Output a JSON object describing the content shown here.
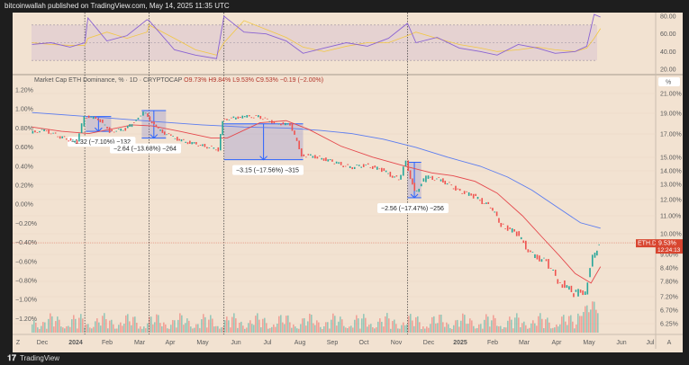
{
  "header": {
    "published": "bitcoinwallah published on TradingView.com, May 14, 2025 11:35 UTC"
  },
  "legend": {
    "symbol": "Market Cap ETH Dominance, % · 1D · CRYPTOCAP",
    "o": "O9.73%",
    "h": "H9.84%",
    "l": "L9.53%",
    "c": "C9.53%",
    "chg": "−0.19 (−2.00%)"
  },
  "footer": {
    "brand": "TradingView"
  },
  "colors": {
    "up": "#26a69a",
    "down": "#ef5350",
    "ma_fast": "#e5484d",
    "ma_slow": "#5b7cf0",
    "rsi": "#8a63d2",
    "rsi_ma": "#f2c744",
    "measure": "#2962ff",
    "price_tag": "#d8452f"
  },
  "price_tag": {
    "symbol": "ETH.D",
    "value": "9.53%",
    "countdown": "12:24:13"
  },
  "axis_buttons": {
    "left": "Z",
    "right": "A",
    "unit": "%"
  },
  "chart_data": [
    {
      "type": "line",
      "panel": "rsi",
      "yticks": [
        "80.00",
        "60.00",
        "40.00",
        "20.00"
      ],
      "ylim": [
        20,
        80
      ],
      "band": [
        30,
        70
      ],
      "x": [
        "2023-11-22",
        "2023-12-10",
        "2023-12-28",
        "2024-01-11",
        "2024-01-14",
        "2024-02-01",
        "2024-02-20",
        "2024-03-10",
        "2024-03-12",
        "2024-04-05",
        "2024-04-25",
        "2024-05-15",
        "2024-05-22",
        "2024-06-10",
        "2024-07-01",
        "2024-07-20",
        "2024-08-05",
        "2024-08-25",
        "2024-09-15",
        "2024-10-05",
        "2024-10-25",
        "2024-11-12",
        "2024-11-20",
        "2024-12-10",
        "2024-12-31",
        "2025-01-20",
        "2025-02-05",
        "2025-02-25",
        "2025-03-15",
        "2025-04-01",
        "2025-04-20",
        "2025-05-01",
        "2025-05-08",
        "2025-05-14"
      ],
      "rsi": [
        48,
        50,
        45,
        50,
        78,
        52,
        58,
        76,
        75,
        42,
        36,
        32,
        80,
        62,
        60,
        52,
        38,
        44,
        50,
        46,
        55,
        72,
        50,
        56,
        44,
        40,
        36,
        48,
        44,
        38,
        40,
        46,
        82,
        79
      ],
      "rsi_ma": [
        50,
        48,
        47,
        47,
        55,
        62,
        55,
        62,
        70,
        55,
        42,
        36,
        50,
        75,
        65,
        56,
        45,
        40,
        46,
        50,
        50,
        58,
        62,
        55,
        48,
        44,
        40,
        42,
        45,
        42,
        40,
        44,
        55,
        66
      ]
    },
    {
      "type": "candlestick",
      "panel": "main",
      "title": "Market Cap ETH Dominance, % · 1D · CRYPTOCAP",
      "right_yticks": [
        "21.00%",
        "19.00%",
        "17.00%",
        "15.00%",
        "14.00%",
        "13.00%",
        "12.00%",
        "11.00%",
        "10.00%",
        "9.00%",
        "8.40%",
        "7.80%",
        "7.20%",
        "6.70%",
        "6.25%"
      ],
      "left_yticks": [
        "1.20%",
        "1.00%",
        "0.80%",
        "0.60%",
        "0.40%",
        "0.20%",
        "0.00%",
        "−0.20%",
        "−0.40%",
        "−0.60%",
        "−0.80%",
        "−1.00%",
        "−1.20%"
      ],
      "xticks": [
        "Dec",
        "2024",
        "Feb",
        "Mar",
        "Apr",
        "May",
        "Jun",
        "Jul",
        "Aug",
        "Sep",
        "Oct",
        "Nov",
        "Dec",
        "2025",
        "Feb",
        "Mar",
        "Apr",
        "May",
        "Jun",
        "Jul"
      ],
      "x": [
        "2023-11-22",
        "2023-12-05",
        "2023-12-20",
        "2024-01-05",
        "2024-01-12",
        "2024-01-25",
        "2024-02-05",
        "2024-02-20",
        "2024-03-01",
        "2024-03-08",
        "2024-03-20",
        "2024-04-01",
        "2024-04-15",
        "2024-05-01",
        "2024-05-18",
        "2024-05-22",
        "2024-06-10",
        "2024-06-25",
        "2024-07-10",
        "2024-07-25",
        "2024-08-05",
        "2024-08-20",
        "2024-09-05",
        "2024-09-20",
        "2024-10-05",
        "2024-10-20",
        "2024-11-05",
        "2024-11-12",
        "2024-11-20",
        "2024-12-01",
        "2024-12-15",
        "2024-12-31",
        "2025-01-15",
        "2025-01-31",
        "2025-02-10",
        "2025-02-25",
        "2025-03-10",
        "2025-03-25",
        "2025-04-05",
        "2025-04-20",
        "2025-05-01",
        "2025-05-08",
        "2025-05-14"
      ],
      "close": [
        17.1,
        17.3,
        16.7,
        16.2,
        18.6,
        18.4,
        17.2,
        17.4,
        18.3,
        19.1,
        17.5,
        16.8,
        16.3,
        16.0,
        15.6,
        18.3,
        18.6,
        18.6,
        18.0,
        17.8,
        15.2,
        15.0,
        14.6,
        14.2,
        14.4,
        14.0,
        13.3,
        14.6,
        12.4,
        13.5,
        13.3,
        12.6,
        12.2,
        11.5,
        10.5,
        10.0,
        9.0,
        8.6,
        7.8,
        7.3,
        7.4,
        8.8,
        9.53
      ],
      "ma_slow": [
        19.0,
        18.7,
        18.4,
        18.1,
        17.8,
        17.6,
        17.5,
        17.3,
        17.0,
        16.5,
        15.8,
        15.0,
        14.3,
        13.5,
        12.6,
        11.6,
        10.6,
        10.3
      ],
      "ma_slow_x": [
        "2023-11-22",
        "2024-01-01",
        "2024-02-10",
        "2024-03-20",
        "2024-05-01",
        "2024-06-10",
        "2024-07-20",
        "2024-08-20",
        "2024-09-20",
        "2024-10-20",
        "2024-11-20",
        "2024-12-20",
        "2025-01-20",
        "2025-02-15",
        "2025-03-10",
        "2025-04-01",
        "2025-04-25",
        "2025-05-14"
      ],
      "ma_fast": [
        17.6,
        17.2,
        17.0,
        17.8,
        17.7,
        17.2,
        16.6,
        16.6,
        18.0,
        18.2,
        17.4,
        15.9,
        15.0,
        14.3,
        13.8,
        13.6,
        13.2,
        12.4,
        11.0,
        9.8,
        8.9,
        8.1,
        7.7,
        8.4
      ],
      "ma_fast_x": [
        "2023-11-22",
        "2023-12-20",
        "2024-01-15",
        "2024-02-25",
        "2024-03-15",
        "2024-04-10",
        "2024-05-10",
        "2024-05-25",
        "2024-06-25",
        "2024-07-20",
        "2024-08-10",
        "2024-09-10",
        "2024-10-10",
        "2024-11-10",
        "2024-12-05",
        "2024-12-25",
        "2025-01-15",
        "2025-02-05",
        "2025-03-01",
        "2025-03-20",
        "2025-04-05",
        "2025-04-20",
        "2025-05-05",
        "2025-05-14"
      ],
      "vlines": [
        "2024-01-11",
        "2024-03-12",
        "2024-05-22",
        "2024-11-12"
      ],
      "measures": [
        {
          "from": "2024-01-12",
          "to": "2024-02-05",
          "high": 18.6,
          "low": 17.2,
          "label": "−1.32 (−7.10%) −132"
        },
        {
          "from": "2024-03-05",
          "to": "2024-03-28",
          "high": 19.2,
          "low": 16.6,
          "label": "−2.64 (−13.68%) −264"
        },
        {
          "from": "2024-05-22",
          "to": "2024-08-05",
          "high": 17.9,
          "low": 14.8,
          "label": "−3.15 (−17.56%) −315"
        },
        {
          "from": "2024-11-12",
          "to": "2024-11-25",
          "high": 14.6,
          "low": 12.1,
          "label": "−2.56 (−17.47%) −256"
        }
      ]
    }
  ]
}
